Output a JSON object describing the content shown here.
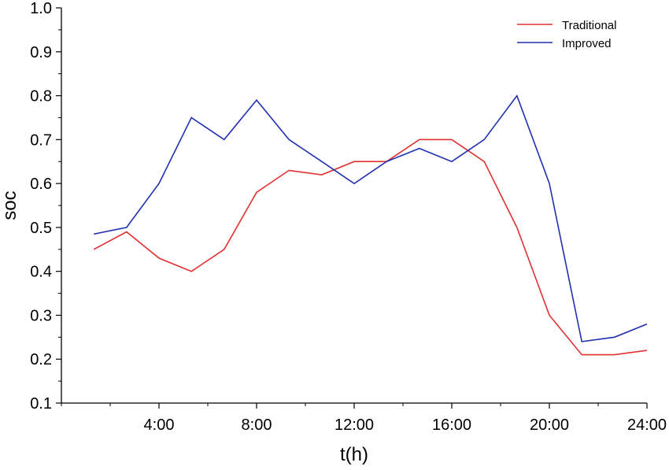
{
  "chart_data": {
    "type": "line",
    "xlabel": "t(h)",
    "ylabel": "soc",
    "xlim": [
      0,
      24
    ],
    "ylim": [
      0.1,
      1.0
    ],
    "x_ticks": [
      {
        "value": 4,
        "label": "4:00"
      },
      {
        "value": 8,
        "label": "8:00"
      },
      {
        "value": 12,
        "label": "12:00"
      },
      {
        "value": 16,
        "label": "16:00"
      },
      {
        "value": 20,
        "label": "20:00"
      },
      {
        "value": 24,
        "label": "24:00"
      }
    ],
    "y_ticks": [
      {
        "value": 0.1,
        "label": "0.1"
      },
      {
        "value": 0.2,
        "label": "0.2"
      },
      {
        "value": 0.3,
        "label": "0.3"
      },
      {
        "value": 0.4,
        "label": "0.4"
      },
      {
        "value": 0.5,
        "label": "0.5"
      },
      {
        "value": 0.6,
        "label": "0.6"
      },
      {
        "value": 0.7,
        "label": "0.7"
      },
      {
        "value": 0.8,
        "label": "0.8"
      },
      {
        "value": 0.9,
        "label": "0.9"
      },
      {
        "value": 1.0,
        "label": "1.0"
      }
    ],
    "grid": false,
    "legend_position": "top-right",
    "series": [
      {
        "name": "Traditional",
        "color": "#e03030",
        "x": [
          1.33,
          2.67,
          4.0,
          5.33,
          6.67,
          8.0,
          9.33,
          10.67,
          12.0,
          13.33,
          14.67,
          16.0,
          17.33,
          18.67,
          20.0,
          21.33,
          22.67,
          24.0
        ],
        "y": [
          0.45,
          0.49,
          0.43,
          0.4,
          0.45,
          0.58,
          0.63,
          0.62,
          0.65,
          0.65,
          0.7,
          0.7,
          0.65,
          0.5,
          0.3,
          0.21,
          0.21,
          0.22
        ]
      },
      {
        "name": "Improved",
        "color": "#2030b0",
        "x": [
          1.33,
          2.67,
          4.0,
          5.33,
          6.67,
          8.0,
          9.33,
          10.67,
          12.0,
          13.33,
          14.67,
          16.0,
          17.33,
          18.67,
          20.0,
          21.33,
          22.67,
          24.0
        ],
        "y": [
          0.485,
          0.5,
          0.6,
          0.75,
          0.7,
          0.79,
          0.7,
          0.65,
          0.6,
          0.65,
          0.68,
          0.65,
          0.7,
          0.8,
          0.6,
          0.24,
          0.25,
          0.28
        ]
      }
    ]
  }
}
